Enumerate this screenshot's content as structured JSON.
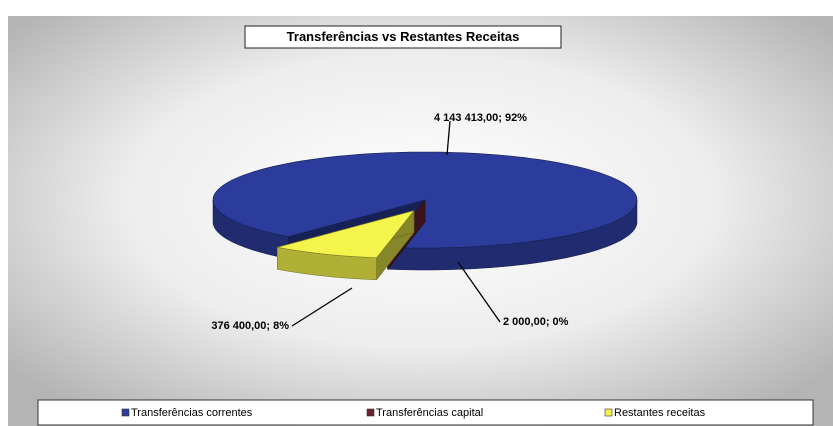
{
  "chart_data": {
    "type": "pie3d",
    "title": "Transferências vs Restantes Receitas",
    "categories": [
      "Transferências correntes",
      "Transferências capital",
      "Restantes receitas"
    ],
    "values": [
      4143413,
      2000,
      376400
    ],
    "value_labels": [
      "4 143 413,00; 92%",
      "2 000,00; 0%",
      "376 400,00; 8%"
    ],
    "colors": [
      "#2c3c9c",
      "#6a2232",
      "#f4f44c"
    ],
    "legend": "bottom"
  }
}
